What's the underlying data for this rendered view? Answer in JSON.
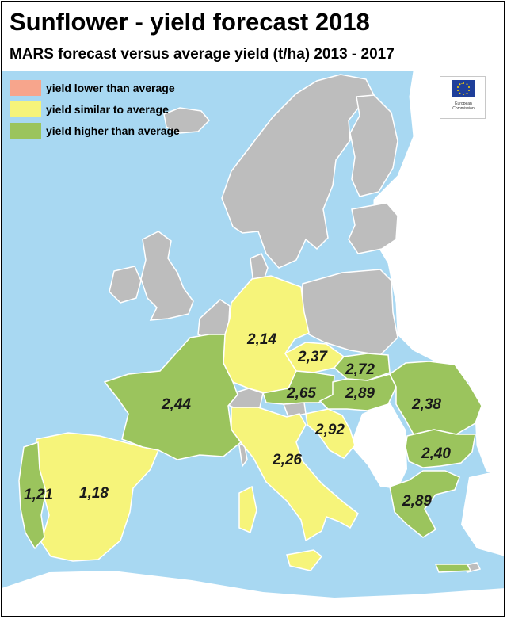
{
  "title": "Sunflower - yield forecast 2018",
  "subtitle": "MARS forecast versus average yield (t/ha) 2013 - 2017",
  "legend": [
    {
      "label": "yield lower than average",
      "color": "#f7a58c"
    },
    {
      "label": "yield similar to average",
      "color": "#f6f47a"
    },
    {
      "label": "yield higher than average",
      "color": "#9bc45d"
    }
  ],
  "logo": {
    "line1": "European",
    "line2": "Commission"
  },
  "colors": {
    "sea": "#a8d8f2",
    "nodata": "#bdbdbd",
    "similar": "#f6f47a",
    "higher": "#9bc45d",
    "border": "#ffffff"
  },
  "regions": [
    {
      "name": "Germany",
      "value": "2,14",
      "category": "similar"
    },
    {
      "name": "Czechia",
      "value": "2,37",
      "category": "similar"
    },
    {
      "name": "Slovakia",
      "value": "2,72",
      "category": "higher"
    },
    {
      "name": "Austria",
      "value": "2,65",
      "category": "higher"
    },
    {
      "name": "Hungary",
      "value": "2,89",
      "category": "higher"
    },
    {
      "name": "Romania",
      "value": "2,38",
      "category": "higher"
    },
    {
      "name": "France",
      "value": "2,44",
      "category": "higher"
    },
    {
      "name": "Croatia",
      "value": "2,92",
      "category": "similar"
    },
    {
      "name": "Italy",
      "value": "2,26",
      "category": "similar"
    },
    {
      "name": "Bulgaria",
      "value": "2,40",
      "category": "higher"
    },
    {
      "name": "Portugal",
      "value": "1,21",
      "category": "higher"
    },
    {
      "name": "Spain",
      "value": "1,18",
      "category": "similar"
    },
    {
      "name": "Greece",
      "value": "2,89",
      "category": "higher"
    }
  ]
}
